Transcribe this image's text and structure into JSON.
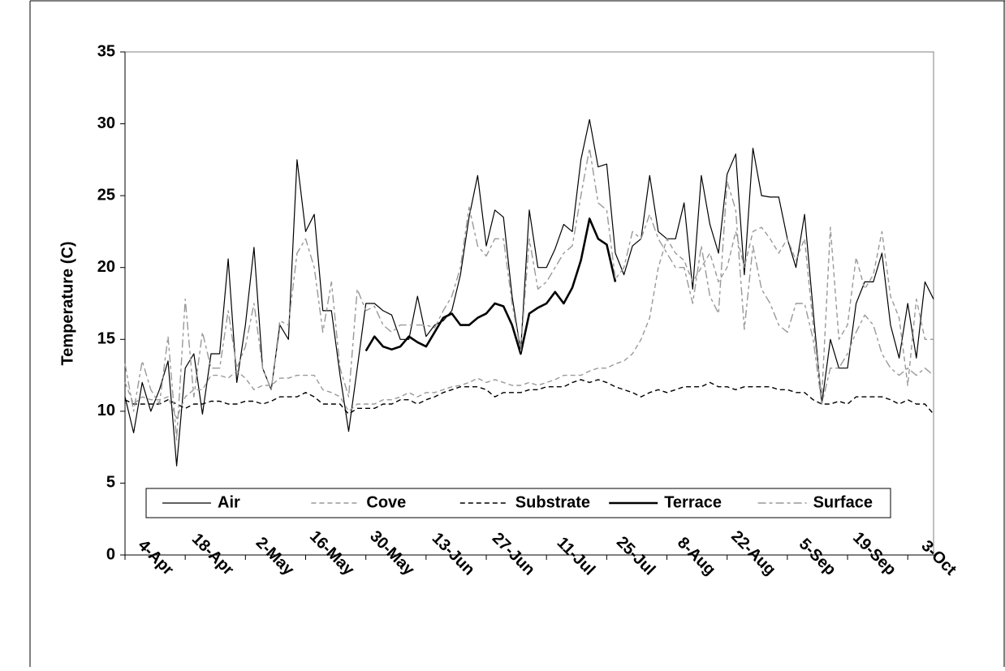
{
  "chart_data": {
    "type": "line",
    "y_label": "Temperature (C)",
    "ylim": [
      0,
      35
    ],
    "yticks": [
      0,
      5,
      10,
      15,
      20,
      25,
      30,
      35
    ],
    "legend": "bottom",
    "categories": [
      "4-Apr",
      null,
      null,
      null,
      null,
      null,
      null,
      "18-Apr",
      null,
      null,
      null,
      null,
      null,
      null,
      "2-May",
      null,
      null,
      null,
      null,
      null,
      null,
      "16-May",
      null,
      null,
      null,
      null,
      null,
      null,
      "30-May",
      null,
      null,
      null,
      null,
      null,
      null,
      "13-Jun",
      null,
      null,
      null,
      null,
      null,
      null,
      "27-Jun",
      null,
      null,
      null,
      null,
      null,
      null,
      "11-Jul",
      null,
      null,
      null,
      null,
      null,
      null,
      "25-Jul",
      null,
      null,
      null,
      null,
      null,
      null,
      "8-Aug",
      null,
      null,
      null,
      null,
      null,
      null,
      "22-Aug",
      null,
      null,
      null,
      null,
      null,
      null,
      "5-Sep",
      null,
      null,
      null,
      null,
      null,
      null,
      "19-Sep",
      null,
      null,
      null,
      null,
      null,
      null,
      "3-Oct",
      null,
      null,
      null
    ],
    "series": [
      {
        "name": "Air",
        "color": "#000000",
        "style": "solid",
        "values": [
          11,
          8.5,
          12,
          10,
          11.5,
          13.5,
          6.2,
          13,
          14,
          9.8,
          14,
          14,
          20.6,
          12,
          16,
          21.4,
          13,
          11.5,
          16,
          15,
          27.5,
          22.5,
          23.7,
          17,
          17,
          12.5,
          8.6,
          13,
          17.5,
          17.5,
          17,
          16.7,
          15,
          15,
          18,
          15.2,
          16,
          16.3,
          17,
          19.5,
          23.5,
          26.4,
          21.5,
          24,
          23.5,
          18,
          14.2,
          24,
          20,
          20,
          21.3,
          23,
          22.5,
          27.5,
          30.3,
          27,
          27.2,
          21,
          19.5,
          21.5,
          22,
          26.4,
          22.5,
          22,
          22,
          24.5,
          18.5,
          26.4,
          23,
          21,
          26.5,
          27.9,
          19.5,
          28.3,
          25,
          24.9,
          24.9,
          22,
          20,
          23.7,
          17,
          10.5,
          15,
          13,
          13,
          17.5,
          19,
          19,
          21,
          16,
          13.7,
          17.5,
          13.7,
          19,
          17.8
        ]
      },
      {
        "name": "Cove",
        "color": "#999999",
        "style": "dashed",
        "values": [
          12,
          10.5,
          11,
          10.8,
          10.8,
          11,
          9.5,
          11,
          11.5,
          11.5,
          12.5,
          12.5,
          12.3,
          12.8,
          12.3,
          11.5,
          11.8,
          11.8,
          12.3,
          12.3,
          12.5,
          12.5,
          12.5,
          11.5,
          11.3,
          11,
          10,
          10.5,
          10.5,
          10.5,
          10.8,
          10.8,
          11,
          11.3,
          11,
          11.3,
          11.3,
          11.5,
          11.7,
          11.8,
          12,
          12.3,
          12,
          12.2,
          12,
          11.8,
          11.8,
          12,
          11.8,
          12,
          12.2,
          12.5,
          12.5,
          12.5,
          12.8,
          13,
          13,
          13.3,
          13.5,
          14,
          15,
          16.5,
          20,
          22,
          21,
          20.5,
          19,
          20,
          21,
          19,
          20,
          22.5,
          20,
          22.5,
          22.8,
          22,
          21,
          22,
          20.5,
          22,
          16,
          11,
          22.8,
          15,
          16,
          20.7,
          18.5,
          19.5,
          22.5,
          18,
          16.5,
          11.8,
          17.8,
          15,
          15
        ]
      },
      {
        "name": "Substrate",
        "color": "#000000",
        "style": "dashed",
        "values": [
          10.8,
          10.5,
          10.5,
          10.5,
          10.5,
          10.8,
          10.5,
          10.2,
          10.5,
          10.5,
          10.7,
          10.7,
          10.5,
          10.5,
          10.7,
          10.7,
          10.5,
          10.7,
          11,
          11,
          11,
          11.3,
          11,
          10.5,
          10.5,
          10.5,
          9.8,
          10.2,
          10.2,
          10.2,
          10.5,
          10.5,
          10.8,
          10.8,
          10.5,
          10.8,
          11,
          11.3,
          11.5,
          11.7,
          11.7,
          11.7,
          11.5,
          11,
          11.3,
          11.3,
          11.3,
          11.5,
          11.5,
          11.7,
          11.7,
          11.7,
          12,
          12.2,
          12,
          12.2,
          12,
          11.7,
          11.5,
          11.3,
          11,
          11.3,
          11.5,
          11.3,
          11.5,
          11.7,
          11.7,
          11.7,
          12,
          11.7,
          11.7,
          11.5,
          11.7,
          11.7,
          11.7,
          11.7,
          11.5,
          11.5,
          11.3,
          11.3,
          10.8,
          10.5,
          10.5,
          10.7,
          10.5,
          11,
          11,
          11,
          11,
          10.8,
          10.5,
          10.8,
          10.5,
          10.5,
          9.8
        ]
      },
      {
        "name": "Terrace",
        "color": "#000000",
        "style": "bold",
        "values": [
          null,
          null,
          null,
          null,
          null,
          null,
          null,
          null,
          null,
          null,
          null,
          null,
          null,
          null,
          null,
          null,
          null,
          null,
          null,
          null,
          null,
          null,
          null,
          null,
          null,
          null,
          null,
          null,
          14.2,
          15.2,
          14.5,
          14.3,
          14.5,
          15.2,
          14.8,
          14.5,
          15.5,
          16.5,
          16.8,
          16,
          16,
          16.5,
          16.8,
          17.5,
          17.3,
          16,
          14,
          16.8,
          17.2,
          17.5,
          18.3,
          17.5,
          18.6,
          20.5,
          23.4,
          22,
          21.6,
          19,
          null,
          null,
          null,
          null,
          null,
          null,
          null,
          null,
          null,
          null,
          null,
          null,
          null,
          null,
          null,
          null,
          null,
          null,
          null,
          null,
          null,
          null,
          null,
          null,
          null,
          null,
          null,
          null,
          null,
          null,
          null,
          null,
          null,
          null,
          null,
          null,
          null
        ]
      },
      {
        "name": "Surface",
        "color": "#999999",
        "style": "dashdot",
        "values": [
          13.3,
          10,
          13.5,
          11.5,
          10.5,
          15.2,
          8,
          17.8,
          11,
          15.5,
          13,
          13,
          17,
          13,
          14.5,
          17.5,
          13,
          11.5,
          16.3,
          16,
          21,
          22,
          20,
          15.5,
          19,
          13,
          11,
          18.5,
          17,
          17.3,
          16,
          15.5,
          16,
          16,
          16,
          16,
          15.8,
          17,
          18,
          20,
          24.2,
          21.5,
          20.8,
          22,
          22,
          17.5,
          14.2,
          22,
          18.5,
          19,
          20,
          21,
          21.5,
          25,
          28.3,
          24.5,
          24,
          19.2,
          20,
          22.5,
          22,
          23.7,
          22,
          21,
          20,
          20,
          17.5,
          21.5,
          18,
          16.8,
          26,
          24,
          15.7,
          21.5,
          18.5,
          17.5,
          16,
          15.5,
          17.5,
          17.5,
          15,
          10.5,
          13,
          13,
          14,
          15.5,
          16.7,
          16,
          14,
          13,
          12.5,
          13,
          12.5,
          13,
          12.5
        ]
      }
    ]
  }
}
